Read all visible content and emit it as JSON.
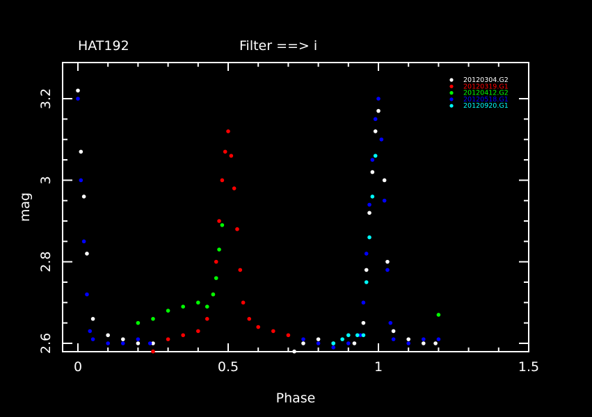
{
  "chart_data": {
    "type": "scatter",
    "title_left": "HAT192",
    "title_center": "Filter ==> i",
    "xlabel": "Phase",
    "ylabel": "mag",
    "xlim": [
      0,
      1.5
    ],
    "ylim": [
      3.2,
      2.6
    ],
    "y_inverted": true,
    "x_ticks": [
      {
        "value": 0,
        "label": "0"
      },
      {
        "value": 0.5,
        "label": "0.5"
      },
      {
        "value": 1,
        "label": "1"
      },
      {
        "value": 1.5,
        "label": "1.5"
      }
    ],
    "y_ticks": [
      {
        "value": 2.6,
        "label": "2.6"
      },
      {
        "value": 2.8,
        "label": "2.8"
      },
      {
        "value": 3.0,
        "label": "3"
      },
      {
        "value": 3.2,
        "label": "3.2"
      }
    ],
    "legend_position": "top-right",
    "series": [
      {
        "name": "20120304.G2",
        "color": "#ffffff",
        "points": [
          [
            0.0,
            3.22
          ],
          [
            0.01,
            3.07
          ],
          [
            0.02,
            2.96
          ],
          [
            0.03,
            2.82
          ],
          [
            0.05,
            2.66
          ],
          [
            0.1,
            2.62
          ],
          [
            0.15,
            2.61
          ],
          [
            0.2,
            2.6
          ],
          [
            0.25,
            2.6
          ],
          [
            0.72,
            2.58
          ],
          [
            0.75,
            2.6
          ],
          [
            0.8,
            2.61
          ],
          [
            0.85,
            2.6
          ],
          [
            0.92,
            2.6
          ],
          [
            0.95,
            2.65
          ],
          [
            0.96,
            2.78
          ],
          [
            0.97,
            2.92
          ],
          [
            0.98,
            3.02
          ],
          [
            0.99,
            3.12
          ],
          [
            1.0,
            3.17
          ],
          [
            1.02,
            3.0
          ],
          [
            1.03,
            2.8
          ],
          [
            1.05,
            2.63
          ],
          [
            1.1,
            2.61
          ],
          [
            1.15,
            2.6
          ],
          [
            1.19,
            2.6
          ]
        ]
      },
      {
        "name": "20120319.G1",
        "color": "#ff0000",
        "points": [
          [
            0.25,
            2.58
          ],
          [
            0.3,
            2.61
          ],
          [
            0.35,
            2.62
          ],
          [
            0.4,
            2.63
          ],
          [
            0.43,
            2.66
          ],
          [
            0.45,
            2.72
          ],
          [
            0.46,
            2.8
          ],
          [
            0.47,
            2.9
          ],
          [
            0.48,
            3.0
          ],
          [
            0.49,
            3.07
          ],
          [
            0.5,
            3.12
          ],
          [
            0.51,
            3.06
          ],
          [
            0.52,
            2.98
          ],
          [
            0.53,
            2.88
          ],
          [
            0.54,
            2.78
          ],
          [
            0.55,
            2.7
          ],
          [
            0.57,
            2.66
          ],
          [
            0.6,
            2.64
          ],
          [
            0.65,
            2.63
          ],
          [
            0.7,
            2.62
          ]
        ]
      },
      {
        "name": "20120412.G2",
        "color": "#00ff00",
        "points": [
          [
            0.2,
            2.65
          ],
          [
            0.25,
            2.66
          ],
          [
            0.3,
            2.68
          ],
          [
            0.35,
            2.69
          ],
          [
            0.4,
            2.7
          ],
          [
            0.43,
            2.69
          ],
          [
            0.45,
            2.72
          ],
          [
            0.46,
            2.76
          ],
          [
            0.47,
            2.83
          ],
          [
            0.48,
            2.89
          ],
          [
            1.2,
            2.67
          ]
        ]
      },
      {
        "name": "20120518.G1",
        "color": "#0000ff",
        "points": [
          [
            0.0,
            3.2
          ],
          [
            0.01,
            3.0
          ],
          [
            0.02,
            2.85
          ],
          [
            0.03,
            2.72
          ],
          [
            0.04,
            2.63
          ],
          [
            0.05,
            2.61
          ],
          [
            0.1,
            2.6
          ],
          [
            0.15,
            2.6
          ],
          [
            0.2,
            2.61
          ],
          [
            0.24,
            2.6
          ],
          [
            0.75,
            2.61
          ],
          [
            0.8,
            2.6
          ],
          [
            0.85,
            2.59
          ],
          [
            0.9,
            2.6
          ],
          [
            0.94,
            2.62
          ],
          [
            0.95,
            2.7
          ],
          [
            0.96,
            2.82
          ],
          [
            0.97,
            2.94
          ],
          [
            0.98,
            3.05
          ],
          [
            0.99,
            3.15
          ],
          [
            1.0,
            3.2
          ],
          [
            1.01,
            3.1
          ],
          [
            1.02,
            2.95
          ],
          [
            1.03,
            2.78
          ],
          [
            1.04,
            2.65
          ],
          [
            1.05,
            2.61
          ],
          [
            1.1,
            2.6
          ],
          [
            1.15,
            2.61
          ],
          [
            1.2,
            2.61
          ]
        ]
      },
      {
        "name": "20120920.G1",
        "color": "#00ffff",
        "points": [
          [
            0.85,
            2.6
          ],
          [
            0.88,
            2.61
          ],
          [
            0.9,
            2.62
          ],
          [
            0.93,
            2.62
          ],
          [
            0.95,
            2.62
          ],
          [
            0.96,
            2.75
          ],
          [
            0.97,
            2.86
          ],
          [
            0.98,
            2.96
          ],
          [
            0.99,
            3.06
          ]
        ]
      }
    ]
  }
}
